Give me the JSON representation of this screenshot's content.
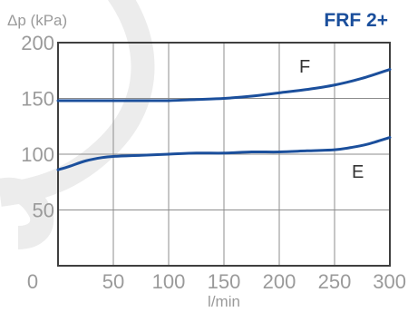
{
  "chart_data": {
    "type": "line",
    "title": "FRF 2+",
    "ylabel": "Δp (kPa)",
    "xlabel": "l/min",
    "xlim": [
      0,
      300
    ],
    "ylim": [
      0,
      200
    ],
    "x_ticks": [
      0,
      50,
      100,
      150,
      200,
      250,
      300
    ],
    "y_ticks": [
      50,
      100,
      150,
      200
    ],
    "grid": true,
    "line_color": "#1b4f9c",
    "series": [
      {
        "name": "F",
        "x": [
          0,
          25,
          50,
          75,
          100,
          125,
          150,
          175,
          200,
          225,
          250,
          275,
          300
        ],
        "y": [
          148,
          148,
          148,
          148,
          148,
          149,
          150,
          152,
          155,
          158,
          162,
          168,
          176
        ]
      },
      {
        "name": "E",
        "x": [
          0,
          10,
          25,
          40,
          50,
          75,
          100,
          125,
          150,
          175,
          200,
          225,
          250,
          265,
          280,
          300
        ],
        "y": [
          86,
          89,
          94,
          97,
          98,
          99,
          100,
          101,
          101,
          102,
          102,
          103,
          104,
          106,
          109,
          115
        ]
      }
    ]
  }
}
